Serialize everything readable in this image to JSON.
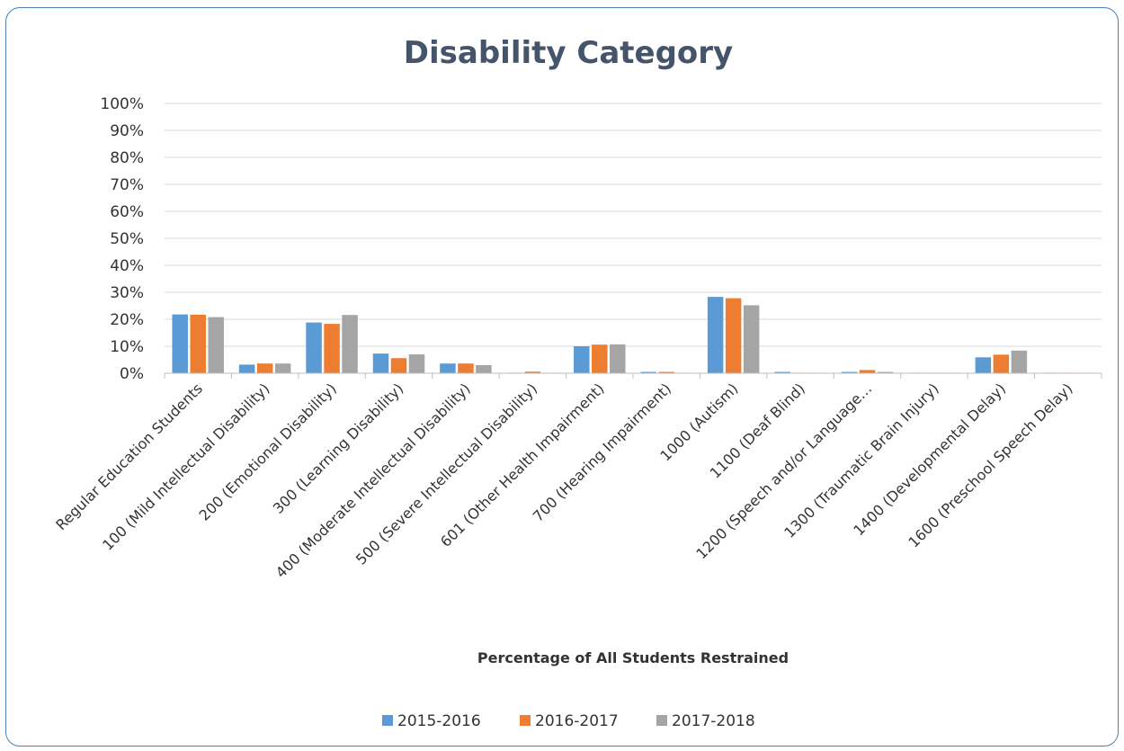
{
  "chart_data": {
    "type": "bar",
    "title": "Disability Category",
    "xlabel": "Percentage of All Students Restrained",
    "ylabel": "",
    "ylim": [
      0,
      100
    ],
    "yticks": [
      "0%",
      "10%",
      "20%",
      "30%",
      "40%",
      "50%",
      "60%",
      "70%",
      "80%",
      "90%",
      "100%"
    ],
    "grid": true,
    "legend_position": "bottom",
    "categories": [
      "Regular Education Students",
      "100 (Mild Intellectual Disability)",
      "200 (Emotional Disability)",
      "300 (Learning Disability)",
      "400 (Moderate Intellectual Disability)",
      "500 (Severe Intellectual Disability)",
      "601 (Other Health Impairment)",
      "700 (Hearing Impairment)",
      "1000 (Autism)",
      "1100 (Deaf Blind)",
      "1200 (Speech and/or Language…",
      "1300 (Traumatic Brain Injury)",
      "1400 (Developmental Delay)",
      "1600 (Preschool Speech Delay)"
    ],
    "series": [
      {
        "name": "2015-2016",
        "color": "#5b9bd5",
        "values": [
          21.8,
          3.2,
          18.8,
          7.3,
          3.6,
          0.1,
          10.0,
          0.5,
          28.3,
          0.5,
          0.5,
          0.1,
          5.9,
          0.1
        ]
      },
      {
        "name": "2016-2017",
        "color": "#ed7d31",
        "values": [
          21.7,
          3.6,
          18.3,
          5.6,
          3.6,
          0.6,
          10.6,
          0.5,
          27.8,
          0.1,
          1.2,
          0.1,
          6.9,
          0.1
        ]
      },
      {
        "name": "2017-2018",
        "color": "#a5a5a5",
        "values": [
          20.8,
          3.6,
          21.6,
          7.0,
          3.0,
          0.1,
          10.7,
          0.1,
          25.2,
          0.1,
          0.5,
          0.1,
          8.4,
          0.1
        ]
      }
    ]
  }
}
